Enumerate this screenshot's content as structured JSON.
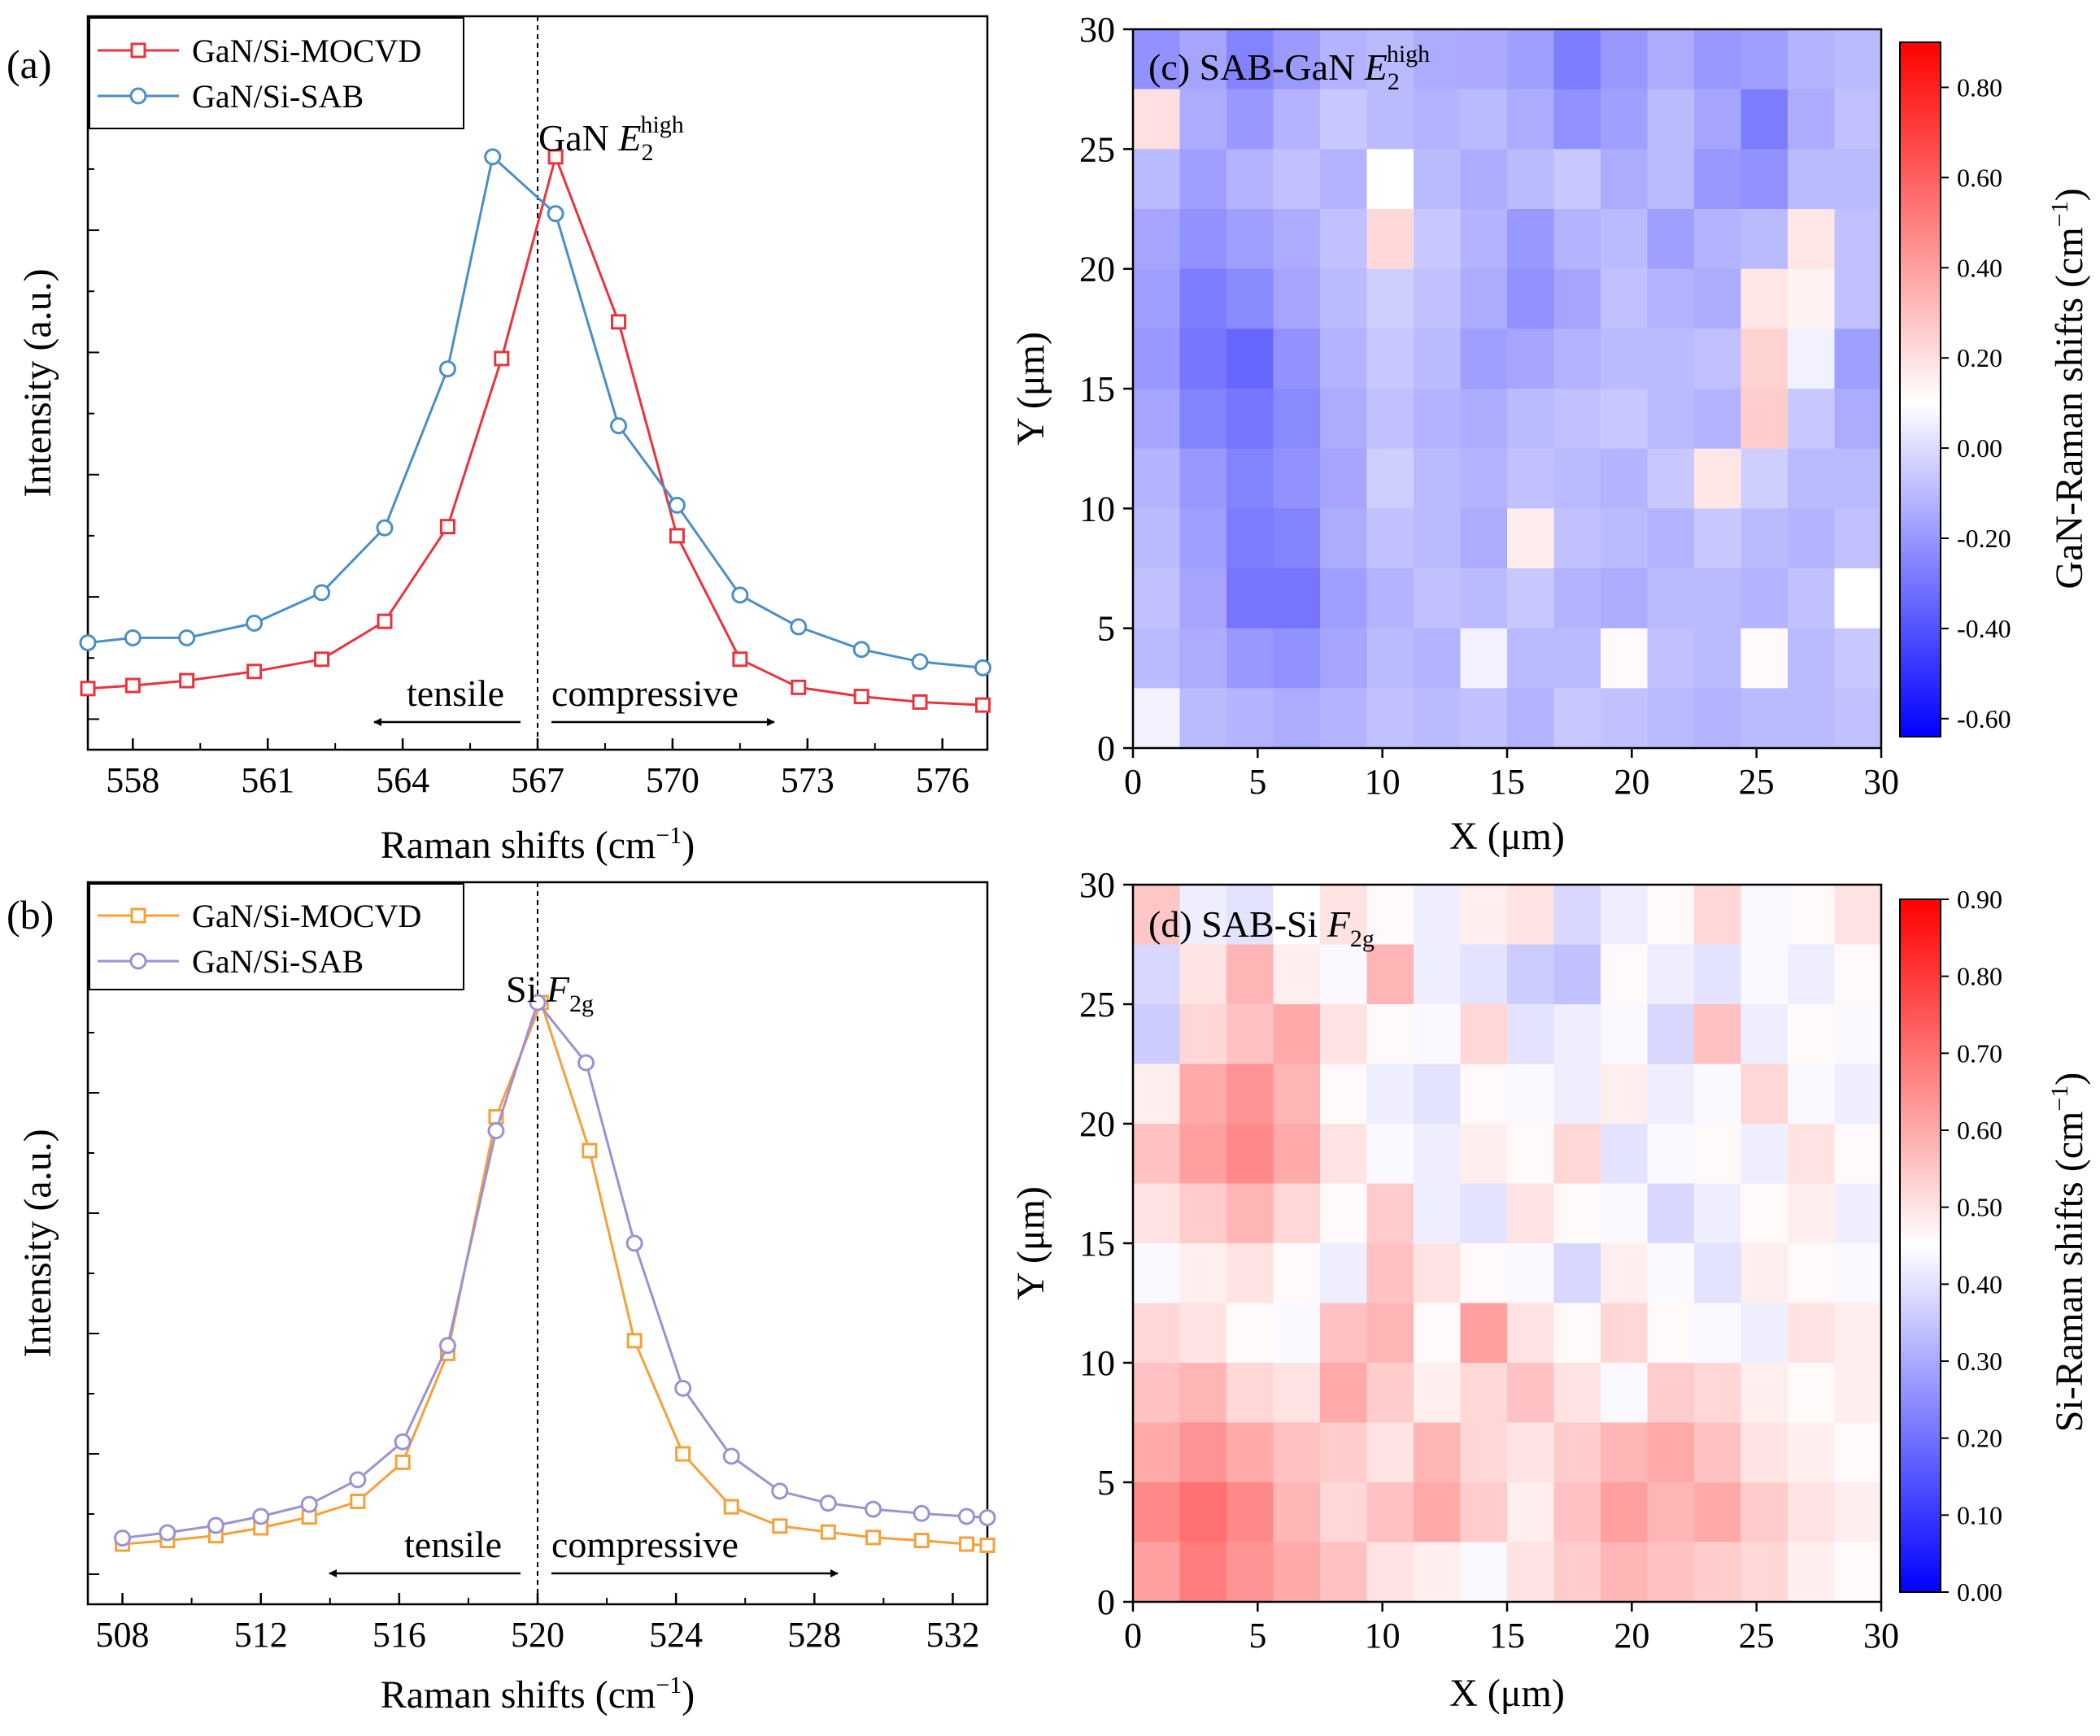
{
  "chart_data": [
    {
      "type": "line",
      "panel_label": "(a)",
      "annotation": "GaN E2high",
      "annotation_base": "GaN ",
      "annotation_italic": "E",
      "annotation_sub": "2",
      "annotation_sup": "high",
      "xlabel": "Raman shifts (cm",
      "xlabel_sup": "−1",
      "xlabel_close": ")",
      "ylabel": "Intensity (a.u.)",
      "xlim": [
        557,
        577
      ],
      "ylim": [
        0,
        1.2
      ],
      "xticks": [
        558,
        561,
        564,
        567,
        570,
        573,
        576
      ],
      "reference_line_x": 567,
      "region_left": "tensile",
      "region_right": "compressive",
      "legend_position": "top-left",
      "series": [
        {
          "name": "GaN/Si-MOCVD",
          "color": "#e8343f",
          "marker": "square",
          "x": [
            557.0,
            558.0,
            559.2,
            560.7,
            562.2,
            563.6,
            565.0,
            566.2,
            567.4,
            568.8,
            570.1,
            571.5,
            572.8,
            574.2,
            575.5,
            576.9
          ],
          "y": [
            0.1,
            0.105,
            0.113,
            0.128,
            0.148,
            0.21,
            0.365,
            0.64,
            0.97,
            0.7,
            0.35,
            0.148,
            0.102,
            0.087,
            0.078,
            0.073
          ]
        },
        {
          "name": "GaN/Si-SAB",
          "color": "#4a8fc8",
          "marker": "circle",
          "x": [
            557.0,
            558.0,
            559.2,
            560.7,
            562.2,
            563.6,
            565.0,
            566.0,
            567.4,
            568.8,
            570.1,
            571.5,
            572.8,
            574.2,
            575.5,
            576.9
          ],
          "y": [
            0.175,
            0.183,
            0.183,
            0.207,
            0.257,
            0.363,
            0.623,
            0.97,
            0.877,
            0.53,
            0.4,
            0.253,
            0.201,
            0.164,
            0.144,
            0.134
          ]
        }
      ]
    },
    {
      "type": "line",
      "panel_label": "(b)",
      "annotation": "Si F2g",
      "annotation_base": "Si ",
      "annotation_italic": "F",
      "annotation_sub": "2g",
      "xlabel": "Raman shifts (cm",
      "xlabel_sup": "−1",
      "xlabel_close": ")",
      "ylabel": "Intensity (a.u.)",
      "xlim": [
        507,
        533
      ],
      "ylim": [
        0,
        1.2
      ],
      "xticks": [
        508,
        512,
        516,
        520,
        524,
        528,
        532
      ],
      "reference_line_x": 520,
      "region_left": "tensile",
      "region_right": "compressive",
      "legend_position": "top-left",
      "series": [
        {
          "name": "GaN/Si-MOCVD",
          "color": "#f5a03a",
          "marker": "square",
          "x": [
            508.0,
            509.3,
            510.7,
            512.0,
            513.4,
            514.8,
            516.1,
            517.4,
            518.8,
            520.1,
            521.5,
            522.8,
            524.2,
            525.6,
            527.0,
            528.4,
            529.7,
            531.1,
            532.4,
            533.0
          ],
          "y": [
            0.1,
            0.106,
            0.114,
            0.127,
            0.145,
            0.171,
            0.236,
            0.417,
            0.81,
            1.0,
            0.754,
            0.438,
            0.25,
            0.162,
            0.13,
            0.12,
            0.111,
            0.106,
            0.1,
            0.098
          ]
        },
        {
          "name": "GaN/Si-SAB",
          "color": "#9b92d2",
          "marker": "circle",
          "x": [
            508.0,
            509.3,
            510.7,
            512.0,
            513.4,
            514.8,
            516.1,
            517.4,
            518.8,
            520.0,
            521.4,
            522.8,
            524.2,
            525.6,
            527.0,
            528.4,
            529.7,
            531.1,
            532.4,
            533.0
          ],
          "y": [
            0.11,
            0.119,
            0.131,
            0.146,
            0.166,
            0.207,
            0.27,
            0.43,
            0.787,
            1.0,
            0.9,
            0.6,
            0.359,
            0.246,
            0.188,
            0.168,
            0.158,
            0.151,
            0.146,
            0.144
          ]
        }
      ]
    },
    {
      "type": "heatmap",
      "panel_label": "(c)",
      "title_base": "SAB-GaN ",
      "title_italic": "E",
      "title_sub": "2",
      "title_sup": "high",
      "xlabel": "X (μm)",
      "ylabel": "Y (μm)",
      "xlim": [
        0,
        30
      ],
      "ylim": [
        0,
        30
      ],
      "xticks": [
        0,
        5,
        10,
        15,
        20,
        25,
        30
      ],
      "yticks": [
        0,
        5,
        10,
        15,
        20,
        25,
        30
      ],
      "colorbar_label": "GaN-Raman shifts (cm",
      "colorbar_label_sup": "−1",
      "colorbar_label_close": ")",
      "colorbar_range": [
        -0.64,
        0.9
      ],
      "colorbar_ticks": [
        0.8,
        0.6,
        0.4,
        0.2,
        0.0,
        -0.2,
        -0.4,
        -0.6
      ],
      "colorbar_ticklabels": [
        "0.80",
        "0.60",
        "0.40",
        "0.20",
        "0.00",
        "-0.20",
        "-0.40",
        "-0.60"
      ],
      "colormap": [
        "#0000ff",
        "#ffffff",
        "#ff0000"
      ],
      "colormap_center": 0.1,
      "z": [
        [
          -0.22,
          -0.16,
          -0.26,
          -0.19,
          -0.12,
          -0.1,
          -0.14,
          -0.15,
          -0.18,
          -0.28,
          -0.2,
          -0.14,
          -0.2,
          -0.18,
          -0.12,
          -0.1
        ],
        [
          0.2,
          -0.14,
          -0.2,
          -0.12,
          -0.06,
          -0.1,
          -0.12,
          -0.1,
          -0.14,
          -0.22,
          -0.18,
          -0.1,
          -0.16,
          -0.28,
          -0.14,
          -0.08
        ],
        [
          -0.1,
          -0.18,
          -0.12,
          -0.08,
          -0.12,
          0.1,
          -0.1,
          -0.14,
          -0.1,
          -0.06,
          -0.14,
          -0.1,
          -0.2,
          -0.22,
          -0.1,
          -0.1
        ],
        [
          -0.16,
          -0.22,
          -0.18,
          -0.14,
          -0.08,
          0.22,
          -0.06,
          -0.12,
          -0.2,
          -0.12,
          -0.1,
          -0.18,
          -0.12,
          -0.1,
          0.18,
          -0.08
        ],
        [
          -0.18,
          -0.28,
          -0.24,
          -0.16,
          -0.1,
          -0.04,
          -0.08,
          -0.14,
          -0.22,
          -0.16,
          -0.08,
          -0.12,
          -0.14,
          0.18,
          0.14,
          -0.08
        ],
        [
          -0.2,
          -0.3,
          -0.34,
          -0.22,
          -0.12,
          -0.06,
          -0.1,
          -0.18,
          -0.16,
          -0.12,
          -0.1,
          -0.1,
          -0.08,
          0.24,
          0.06,
          -0.18
        ],
        [
          -0.16,
          -0.26,
          -0.3,
          -0.24,
          -0.14,
          -0.08,
          -0.12,
          -0.14,
          -0.1,
          -0.08,
          -0.06,
          -0.1,
          -0.12,
          0.26,
          -0.06,
          -0.14
        ],
        [
          -0.12,
          -0.2,
          -0.26,
          -0.22,
          -0.16,
          -0.04,
          -0.1,
          -0.12,
          -0.08,
          -0.1,
          -0.12,
          -0.06,
          0.18,
          -0.04,
          -0.1,
          -0.1
        ],
        [
          -0.1,
          -0.18,
          -0.28,
          -0.26,
          -0.14,
          -0.08,
          -0.1,
          -0.14,
          0.16,
          -0.08,
          -0.1,
          -0.12,
          -0.06,
          -0.1,
          -0.12,
          -0.08
        ],
        [
          -0.08,
          -0.16,
          -0.3,
          -0.3,
          -0.18,
          -0.12,
          -0.08,
          -0.1,
          -0.06,
          -0.12,
          -0.14,
          -0.1,
          -0.1,
          -0.12,
          -0.08,
          0.1
        ],
        [
          -0.1,
          -0.14,
          -0.2,
          -0.22,
          -0.16,
          -0.1,
          -0.12,
          0.06,
          -0.1,
          -0.1,
          0.12,
          -0.08,
          -0.1,
          0.12,
          -0.1,
          -0.06
        ],
        [
          0.06,
          -0.1,
          -0.12,
          -0.14,
          -0.12,
          -0.08,
          -0.1,
          -0.08,
          -0.12,
          -0.06,
          -0.08,
          -0.1,
          -0.12,
          -0.1,
          -0.1,
          -0.08
        ]
      ]
    },
    {
      "type": "heatmap",
      "panel_label": "(d)",
      "title_base": "SAB-Si ",
      "title_italic": "F",
      "title_sub": "2g",
      "xlabel": "X (μm)",
      "ylabel": "Y (μm)",
      "xlim": [
        0,
        30
      ],
      "ylim": [
        0,
        30
      ],
      "xticks": [
        0,
        5,
        10,
        15,
        20,
        25,
        30
      ],
      "yticks": [
        0,
        5,
        10,
        15,
        20,
        25,
        30
      ],
      "colorbar_label": "Si-Raman shifts (cm",
      "colorbar_label_sup": "−1",
      "colorbar_label_close": ")",
      "colorbar_range": [
        0.0,
        0.9
      ],
      "colorbar_ticks": [
        0.9,
        0.8,
        0.7,
        0.6,
        0.5,
        0.4,
        0.3,
        0.2,
        0.1,
        0.0
      ],
      "colorbar_ticklabels": [
        "0.90",
        "0.80",
        "0.70",
        "0.60",
        "0.50",
        "0.40",
        "0.30",
        "0.20",
        "0.10",
        "0.00"
      ],
      "colormap": [
        "#0000ff",
        "#ffffff",
        "#ff0000"
      ],
      "colormap_center": 0.45,
      "z": [
        [
          0.55,
          0.42,
          0.4,
          0.45,
          0.5,
          0.46,
          0.42,
          0.48,
          0.5,
          0.38,
          0.42,
          0.46,
          0.52,
          0.44,
          0.46,
          0.5
        ],
        [
          0.38,
          0.5,
          0.58,
          0.48,
          0.44,
          0.58,
          0.42,
          0.4,
          0.36,
          0.34,
          0.46,
          0.42,
          0.4,
          0.44,
          0.42,
          0.46
        ],
        [
          0.36,
          0.52,
          0.56,
          0.6,
          0.5,
          0.46,
          0.44,
          0.52,
          0.4,
          0.42,
          0.44,
          0.38,
          0.56,
          0.42,
          0.46,
          0.44
        ],
        [
          0.48,
          0.6,
          0.64,
          0.58,
          0.46,
          0.42,
          0.4,
          0.46,
          0.44,
          0.42,
          0.48,
          0.42,
          0.44,
          0.52,
          0.44,
          0.42
        ],
        [
          0.56,
          0.62,
          0.66,
          0.6,
          0.5,
          0.44,
          0.42,
          0.48,
          0.46,
          0.52,
          0.4,
          0.44,
          0.46,
          0.42,
          0.5,
          0.46
        ],
        [
          0.5,
          0.54,
          0.58,
          0.52,
          0.46,
          0.54,
          0.42,
          0.4,
          0.5,
          0.46,
          0.44,
          0.38,
          0.42,
          0.46,
          0.48,
          0.42
        ],
        [
          0.44,
          0.48,
          0.5,
          0.46,
          0.42,
          0.56,
          0.5,
          0.46,
          0.44,
          0.38,
          0.48,
          0.44,
          0.4,
          0.48,
          0.46,
          0.44
        ],
        [
          0.52,
          0.5,
          0.46,
          0.44,
          0.56,
          0.58,
          0.46,
          0.62,
          0.5,
          0.46,
          0.52,
          0.46,
          0.44,
          0.42,
          0.5,
          0.48
        ],
        [
          0.56,
          0.58,
          0.52,
          0.5,
          0.6,
          0.54,
          0.48,
          0.52,
          0.56,
          0.5,
          0.44,
          0.54,
          0.52,
          0.48,
          0.46,
          0.48
        ],
        [
          0.6,
          0.64,
          0.6,
          0.56,
          0.54,
          0.5,
          0.58,
          0.52,
          0.5,
          0.54,
          0.58,
          0.6,
          0.56,
          0.5,
          0.48,
          0.46
        ],
        [
          0.66,
          0.7,
          0.66,
          0.58,
          0.52,
          0.56,
          0.6,
          0.54,
          0.48,
          0.56,
          0.62,
          0.58,
          0.6,
          0.54,
          0.5,
          0.48
        ],
        [
          0.62,
          0.68,
          0.64,
          0.6,
          0.56,
          0.5,
          0.48,
          0.44,
          0.5,
          0.54,
          0.58,
          0.56,
          0.54,
          0.52,
          0.48,
          0.46
        ]
      ]
    }
  ]
}
